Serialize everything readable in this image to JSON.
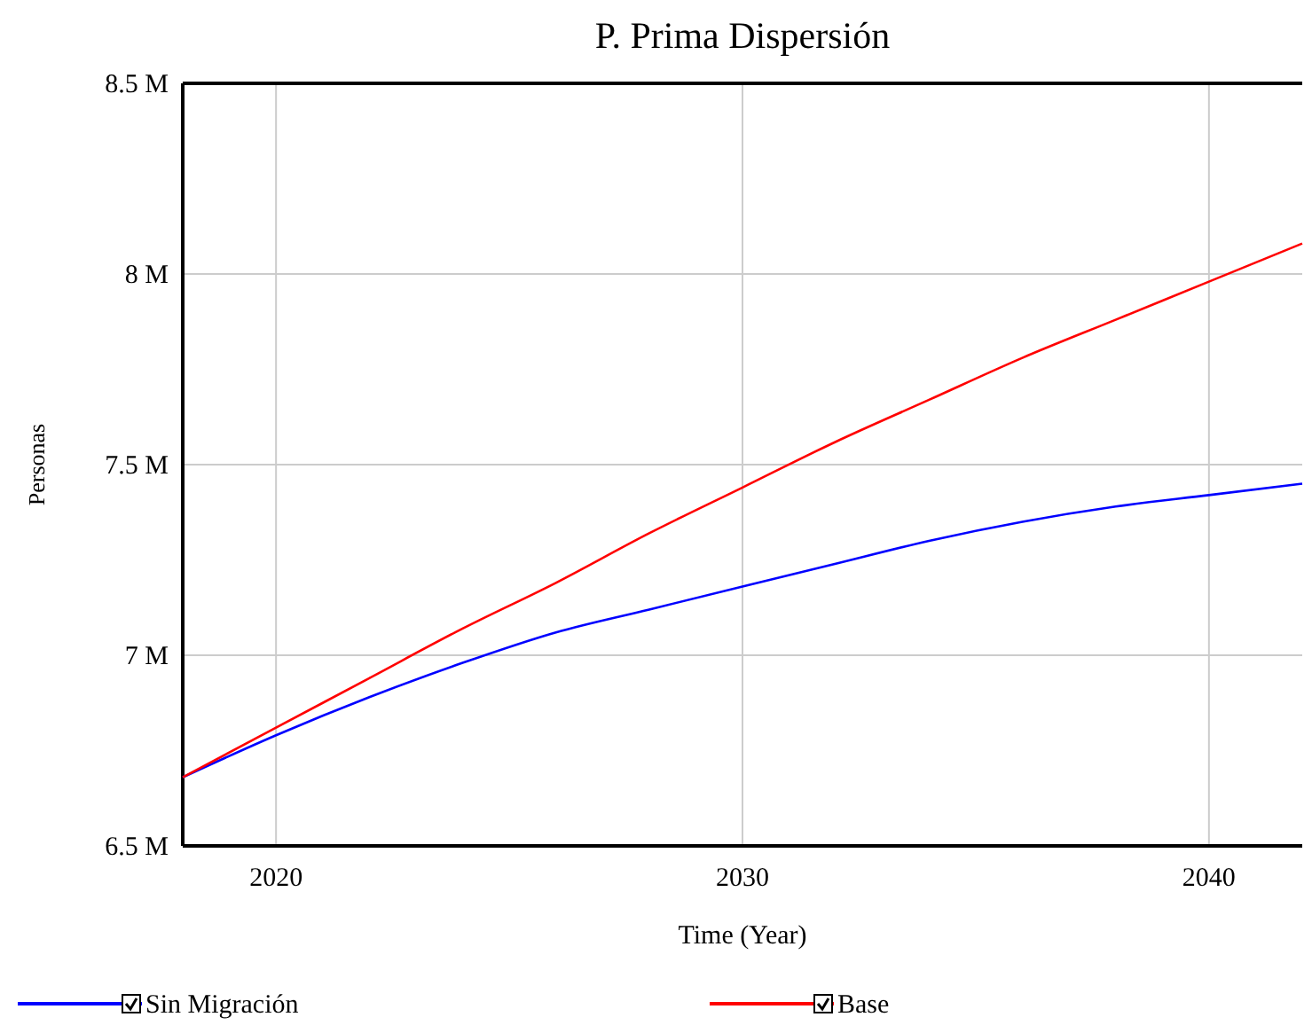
{
  "chart_data": {
    "type": "line",
    "title": "P. Prima Dispersión",
    "xlabel": "Time (Year)",
    "ylabel": "Personas",
    "x": [
      2018,
      2020,
      2022,
      2024,
      2026,
      2028,
      2030,
      2032,
      2034,
      2036,
      2038,
      2040,
      2042
    ],
    "series": [
      {
        "name": "Sin Migración",
        "color": "#0000ff",
        "values": [
          6.68,
          6.79,
          6.89,
          6.98,
          7.06,
          7.12,
          7.18,
          7.24,
          7.3,
          7.35,
          7.39,
          7.42,
          7.45
        ]
      },
      {
        "name": "Base",
        "color": "#ff0000",
        "values": [
          6.68,
          6.81,
          6.94,
          7.07,
          7.19,
          7.32,
          7.44,
          7.56,
          7.67,
          7.78,
          7.88,
          7.98,
          8.08
        ]
      }
    ],
    "xlim": [
      2018,
      2042
    ],
    "xticks": [
      2020,
      2030,
      2040
    ],
    "ylim": [
      6.5,
      8.5
    ],
    "yticks": [
      {
        "value": 6.5,
        "label": "6.5 M"
      },
      {
        "value": 7,
        "label": "7 M"
      },
      {
        "value": 7.5,
        "label": "7.5 M"
      },
      {
        "value": 8,
        "label": "8 M"
      },
      {
        "value": 8.5,
        "label": "8.5 M"
      }
    ],
    "grid": true,
    "legend": "bottom",
    "marker": "none",
    "line_style": "solid"
  }
}
